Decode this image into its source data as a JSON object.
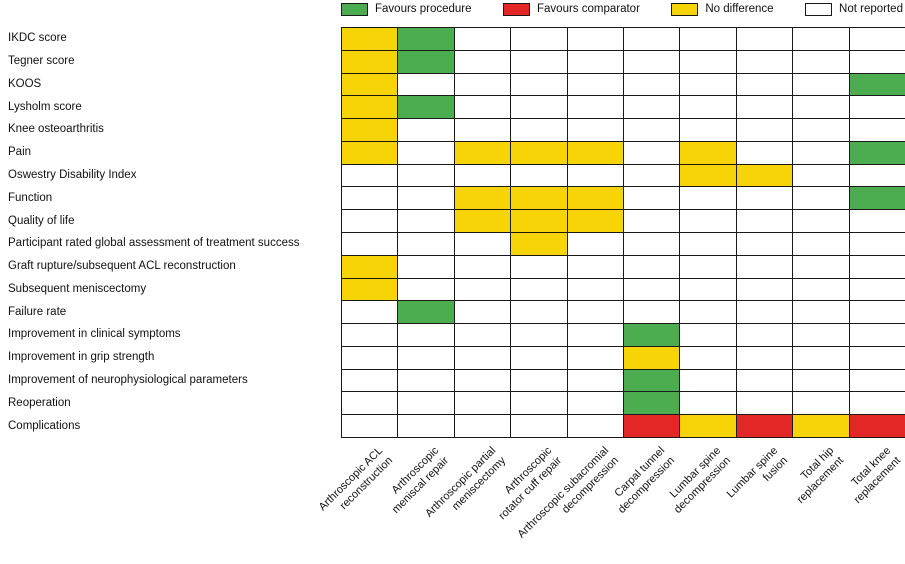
{
  "legend": {
    "items": [
      {
        "key": "P",
        "label": "Favours procedure",
        "color": "#4bad4f"
      },
      {
        "key": "C",
        "label": "Favours comparator",
        "color": "#e32726"
      },
      {
        "key": "N",
        "label": "No difference",
        "color": "#f7d408"
      },
      {
        "key": "-",
        "label": "Not reported",
        "color": "#ffffff"
      }
    ]
  },
  "chart_data": {
    "type": "heatmap",
    "title": "",
    "rows": [
      "IKDC score",
      "Tegner score",
      "KOOS",
      "Lysholm score",
      "Knee osteoarthritis",
      "Pain",
      "Oswestry Disability Index",
      "Function",
      "Quality of life",
      "Participant rated global assessment of treatment success",
      "Graft rupture/subsequent ACL reconstruction",
      "Subsequent meniscectomy",
      "Failure rate",
      "Improvement in clinical symptoms",
      "Improvement in grip strength",
      "Improvement of neurophysiological parameters",
      "Reoperation",
      "Complications"
    ],
    "columns": [
      "Arthroscopic ACL\nreconstruction",
      "Arthroscopic\nmeniscal repair",
      "Arthroscopic partial\nmeniscectomy",
      "Arthroscopic\nrotator cuff repair",
      "Arthroscopic subacromial\ndecompression",
      "Carpal tunnel\ndecompression",
      "Lumbar spine\ndecompression",
      "Lumbar spine\nfusion",
      "Total hip\nreplacement",
      "Total knee\nreplacement"
    ],
    "value_legend": {
      "P": "Favours procedure",
      "C": "Favours comparator",
      "N": "No difference",
      "-": "Not reported"
    },
    "value_colors": {
      "P": "#4bad4f",
      "C": "#e32726",
      "N": "#f7d408",
      "-": "#ffffff"
    },
    "values": [
      [
        "N",
        "P",
        "-",
        "-",
        "-",
        "-",
        "-",
        "-",
        "-",
        "-"
      ],
      [
        "N",
        "P",
        "-",
        "-",
        "-",
        "-",
        "-",
        "-",
        "-",
        "-"
      ],
      [
        "N",
        "-",
        "-",
        "-",
        "-",
        "-",
        "-",
        "-",
        "-",
        "P"
      ],
      [
        "N",
        "P",
        "-",
        "-",
        "-",
        "-",
        "-",
        "-",
        "-",
        "-"
      ],
      [
        "N",
        "-",
        "-",
        "-",
        "-",
        "-",
        "-",
        "-",
        "-",
        "-"
      ],
      [
        "N",
        "-",
        "N",
        "N",
        "N",
        "-",
        "N",
        "-",
        "-",
        "P"
      ],
      [
        "-",
        "-",
        "-",
        "-",
        "-",
        "-",
        "N",
        "N",
        "-",
        "-"
      ],
      [
        "-",
        "-",
        "N",
        "N",
        "N",
        "-",
        "-",
        "-",
        "-",
        "P"
      ],
      [
        "-",
        "-",
        "N",
        "N",
        "N",
        "-",
        "-",
        "-",
        "-",
        "-"
      ],
      [
        "-",
        "-",
        "-",
        "N",
        "-",
        "-",
        "-",
        "-",
        "-",
        "-"
      ],
      [
        "N",
        "-",
        "-",
        "-",
        "-",
        "-",
        "-",
        "-",
        "-",
        "-"
      ],
      [
        "N",
        "-",
        "-",
        "-",
        "-",
        "-",
        "-",
        "-",
        "-",
        "-"
      ],
      [
        "-",
        "P",
        "-",
        "-",
        "-",
        "-",
        "-",
        "-",
        "-",
        "-"
      ],
      [
        "-",
        "-",
        "-",
        "-",
        "-",
        "P",
        "-",
        "-",
        "-",
        "-"
      ],
      [
        "-",
        "-",
        "-",
        "-",
        "-",
        "N",
        "-",
        "-",
        "-",
        "-"
      ],
      [
        "-",
        "-",
        "-",
        "-",
        "-",
        "P",
        "-",
        "-",
        "-",
        "-"
      ],
      [
        "-",
        "-",
        "-",
        "-",
        "-",
        "P",
        "-",
        "-",
        "-",
        "-"
      ],
      [
        "-",
        "-",
        "-",
        "-",
        "-",
        "C",
        "N",
        "C",
        "N",
        "C"
      ]
    ],
    "layout": {
      "legend_position": "top",
      "x_label_rotation_deg": 45,
      "grid": "on"
    }
  }
}
